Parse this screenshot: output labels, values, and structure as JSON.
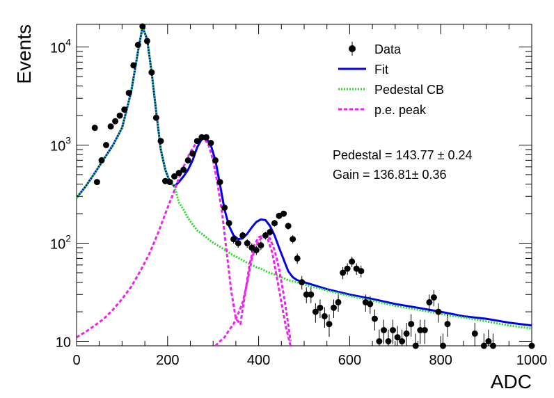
{
  "chart_data": {
    "type": "scatter",
    "xlabel": "ADC",
    "ylabel": "Events",
    "xlim": [
      0,
      1000
    ],
    "ylim": [
      9,
      17000
    ],
    "yscale": "log",
    "x_ticks": [
      {
        "value": 0,
        "label": "0"
      },
      {
        "value": 200,
        "label": "200"
      },
      {
        "value": 400,
        "label": "400"
      },
      {
        "value": 600,
        "label": "600"
      },
      {
        "value": 800,
        "label": "800"
      },
      {
        "value": 1000,
        "label": "1000"
      }
    ],
    "y_ticks": [
      {
        "value": 10,
        "base": "10",
        "exp": ""
      },
      {
        "value": 100,
        "base": "10",
        "exp": "2"
      },
      {
        "value": 1000,
        "base": "10",
        "exp": "3"
      },
      {
        "value": 10000,
        "base": "10",
        "exp": "4"
      }
    ],
    "legend": {
      "position": "top-right",
      "entries": [
        {
          "label": "Data",
          "style": "marker",
          "color": "#000000"
        },
        {
          "label": "Fit",
          "style": "solid",
          "color": "#0000ee"
        },
        {
          "label": "Pedestal CB",
          "style": "dotted",
          "color": "#22dd22"
        },
        {
          "label": "p.e. peak",
          "style": "dashed",
          "color": "#ee22ee"
        }
      ]
    },
    "annotations": [
      "Pedestal = 143.77 ± 0.24",
      "Gain = 136.81± 0.36"
    ],
    "series": [
      {
        "name": "Data",
        "kind": "points",
        "color": "#000000",
        "x": [
          40,
          45,
          55,
          65,
          75,
          85,
          95,
          105,
          115,
          125,
          135,
          145,
          155,
          165,
          175,
          185,
          195,
          205,
          215,
          225,
          235,
          245,
          255,
          265,
          275,
          285,
          295,
          305,
          315,
          325,
          335,
          345,
          355,
          365,
          375,
          385,
          395,
          405,
          415,
          425,
          435,
          445,
          455,
          465,
          475,
          485,
          495,
          505,
          515,
          525,
          535,
          545,
          555,
          565,
          575,
          585,
          595,
          605,
          615,
          625,
          635,
          645,
          655,
          665,
          675,
          685,
          695,
          705,
          715,
          725,
          735,
          745,
          755,
          765,
          775,
          785,
          795,
          805,
          815,
          875,
          895,
          905,
          915,
          1000
        ],
        "y": [
          1500,
          420,
          700,
          1000,
          1550,
          1750,
          2000,
          2300,
          3400,
          6500,
          10500,
          16200,
          11500,
          5500,
          1900,
          1100,
          430,
          420,
          480,
          520,
          560,
          700,
          820,
          1100,
          1200,
          1200,
          1050,
          700,
          420,
          230,
          160,
          110,
          100,
          120,
          100,
          90,
          85,
          95,
          120,
          130,
          160,
          190,
          200,
          150,
          110,
          70,
          40,
          30,
          30,
          20,
          22,
          18,
          15,
          22,
          25,
          50,
          55,
          65,
          55,
          52,
          25,
          24,
          17,
          10,
          13,
          10,
          13,
          11,
          10,
          12,
          15,
          9,
          13,
          13,
          25,
          28,
          20,
          9,
          15,
          12,
          9,
          10,
          9,
          9
        ]
      },
      {
        "name": "Fit",
        "kind": "curve",
        "color": "#0000ee",
        "x": [
          0,
          20,
          40,
          60,
          80,
          100,
          120,
          135,
          145,
          155,
          165,
          175,
          185,
          195,
          205,
          215,
          225,
          235,
          245,
          255,
          265,
          275,
          285,
          295,
          305,
          315,
          325,
          335,
          345,
          355,
          365,
          375,
          385,
          395,
          405,
          415,
          425,
          435,
          445,
          455,
          465,
          475,
          485,
          500,
          550,
          600,
          650,
          700,
          750,
          800,
          850,
          900,
          950,
          1000
        ],
        "y": [
          290,
          380,
          520,
          720,
          1000,
          1500,
          3500,
          9000,
          16000,
          12000,
          5500,
          2200,
          900,
          560,
          420,
          380,
          420,
          480,
          560,
          700,
          950,
          1150,
          1180,
          1000,
          700,
          400,
          220,
          150,
          120,
          110,
          112,
          125,
          145,
          165,
          175,
          172,
          150,
          120,
          90,
          68,
          52,
          45,
          42,
          40,
          34,
          30,
          27,
          24,
          22,
          20,
          18,
          17,
          15.5,
          14.5
        ]
      },
      {
        "name": "Pedestal CB",
        "kind": "curve",
        "color": "#22dd22",
        "x": [
          0,
          20,
          40,
          60,
          80,
          100,
          120,
          135,
          145,
          155,
          165,
          175,
          185,
          195,
          205,
          215,
          225,
          235,
          245,
          255,
          265,
          275,
          285,
          295,
          305,
          315,
          325,
          335,
          345,
          355,
          365,
          375,
          385,
          395,
          405,
          415,
          425,
          435,
          445,
          455,
          465,
          475,
          485,
          500,
          550,
          600,
          650,
          700,
          750,
          800,
          850,
          900,
          950,
          1000
        ],
        "y": [
          290,
          380,
          520,
          720,
          1000,
          1500,
          3500,
          9000,
          16000,
          12000,
          5500,
          2200,
          900,
          560,
          420,
          380,
          260,
          220,
          180,
          155,
          135,
          125,
          115,
          105,
          98,
          92,
          86,
          80,
          75,
          71,
          67,
          63,
          60,
          57,
          55,
          52,
          50,
          48,
          46,
          44,
          42,
          41,
          40,
          38,
          33,
          29,
          26,
          23,
          21,
          19,
          17.5,
          16,
          14.5,
          13.5
        ]
      },
      {
        "name": "p.e. peak",
        "kind": "curve",
        "color": "#ee22ee",
        "x": [
          0,
          20,
          40,
          60,
          80,
          100,
          120,
          140,
          160,
          180,
          200,
          210,
          220,
          230,
          240,
          250,
          260,
          270,
          280,
          290,
          300,
          310,
          320,
          330,
          340,
          350,
          360,
          370,
          380,
          390,
          400,
          410,
          415,
          420,
          430,
          440,
          450,
          460,
          470
        ],
        "y": [
          11,
          12.5,
          14.5,
          17,
          21,
          27,
          36,
          52,
          78,
          130,
          230,
          300,
          400,
          530,
          680,
          850,
          1000,
          1150,
          1180,
          1000,
          700,
          400,
          200,
          80,
          32,
          17,
          15,
          30,
          60,
          95,
          115,
          120,
          118,
          110,
          80,
          45,
          25,
          14,
          9
        ]
      },
      {
        "name": "p.e. peak (2nd component)",
        "kind": "curve",
        "color": "#ee22ee",
        "x": [
          305,
          315,
          325,
          335,
          345,
          355,
          365,
          375,
          385,
          395,
          405,
          415,
          425,
          435,
          445,
          455,
          465,
          470
        ],
        "y": [
          9,
          10,
          11,
          13,
          15,
          19,
          25,
          40,
          70,
          95,
          112,
          120,
          112,
          85,
          55,
          30,
          15,
          10
        ]
      }
    ]
  }
}
